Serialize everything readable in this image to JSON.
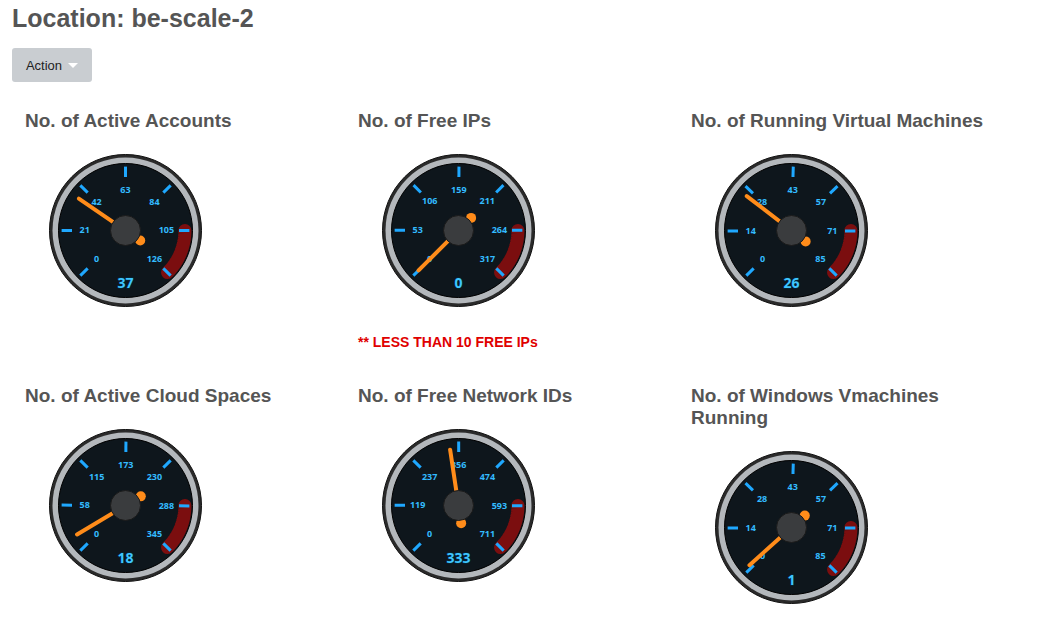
{
  "title": "Location: be-scale-2",
  "button": "Action",
  "chart_data": [
    {
      "type": "gauge",
      "title": "No. of Active Accounts",
      "value": 37,
      "ylim": [
        0,
        126
      ],
      "yticks": [
        0,
        21,
        42,
        63,
        84,
        105,
        126
      ]
    },
    {
      "type": "gauge",
      "title": "No. of Free IPs",
      "value": 0,
      "ylim": [
        0,
        317
      ],
      "yticks": [
        0,
        53,
        106,
        159,
        211,
        264,
        317
      ],
      "annotation": "** LESS THAN 10 FREE IPs"
    },
    {
      "type": "gauge",
      "title": "No. of Running Virtual Machines",
      "value": 26,
      "ylim": [
        0,
        85
      ],
      "yticks": [
        0,
        14,
        28,
        43,
        57,
        71,
        85
      ]
    },
    {
      "type": "gauge",
      "title": "No. of Active Cloud Spaces",
      "value": 18,
      "ylim": [
        0,
        345
      ],
      "yticks": [
        0,
        58,
        115,
        173,
        230,
        288,
        345
      ]
    },
    {
      "type": "gauge",
      "title": "No. of Free Network IDs",
      "value": 333,
      "ylim": [
        0,
        711
      ],
      "yticks": [
        0,
        119,
        237,
        356,
        474,
        593,
        711
      ]
    },
    {
      "type": "gauge",
      "title": "No. of Windows Vmachines Running",
      "value": 1,
      "ylim": [
        0,
        85
      ],
      "yticks": [
        0,
        14,
        28,
        43,
        57,
        71,
        85
      ]
    }
  ]
}
